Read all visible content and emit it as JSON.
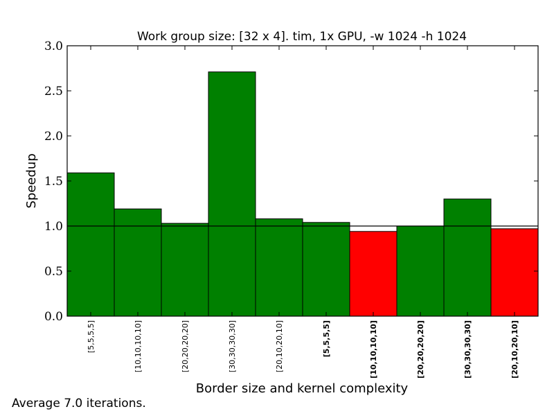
{
  "chart_data": {
    "type": "bar",
    "title": "Work group size: [32 x 4]. tim, 1x GPU, -w 1024 -h 1024",
    "xlabel": "Border size and kernel complexity",
    "ylabel": "Speedup",
    "ylim": [
      0,
      3.0
    ],
    "yticks": [
      "0.0",
      "0.5",
      "1.0",
      "1.5",
      "2.0",
      "2.5",
      "3.0"
    ],
    "reference_line": 1.0,
    "categories": [
      "[5,5,5,5]",
      "[10,10,10,10]",
      "[20,20,20,20]",
      "[30,30,30,30]",
      "[20,10,20,10]",
      "[5,5,5,5]",
      "[10,10,10,10]",
      "[20,20,20,20]",
      "[30,30,30,30]",
      "[20,10,20,10]"
    ],
    "bold_categories": [
      false,
      false,
      false,
      false,
      false,
      true,
      true,
      true,
      true,
      true
    ],
    "values": [
      1.59,
      1.19,
      1.03,
      2.71,
      1.08,
      1.04,
      0.94,
      1.0,
      1.3,
      0.97
    ],
    "colors": {
      "above": "#008000",
      "below": "#ff0000"
    },
    "grid": false,
    "footnote": "Average 7.0 iterations."
  }
}
